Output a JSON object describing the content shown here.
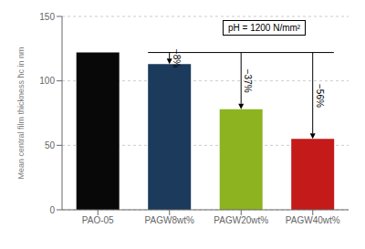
{
  "chart_data": {
    "type": "bar",
    "categories": [
      "PAO-05",
      "PAGW8wt%",
      "PAGW20wt%",
      "PAGW40wt%"
    ],
    "values": [
      122,
      113,
      78,
      55
    ],
    "colors": [
      "#080808",
      "#1b3a5c",
      "#8db320",
      "#c41a1a"
    ],
    "ylabel": "Mean central film thickness h̄c in nm",
    "ylim": [
      0,
      150
    ],
    "yticks": [
      0,
      50,
      100,
      150
    ],
    "grid": true,
    "reference_line": {
      "y": 122,
      "from": "PAGW8wt%",
      "to": "PAGW40wt%"
    },
    "annotations": [
      {
        "text": "−8%",
        "category": "PAGW8wt%",
        "from": 122,
        "to": 113
      },
      {
        "text": "−37%",
        "category": "PAGW20wt%",
        "from": 122,
        "to": 78
      },
      {
        "text": "−56%",
        "category": "PAGW40wt%",
        "from": 122,
        "to": 55
      },
      {
        "text": "pH = 1200 N/mm²"
      }
    ]
  }
}
